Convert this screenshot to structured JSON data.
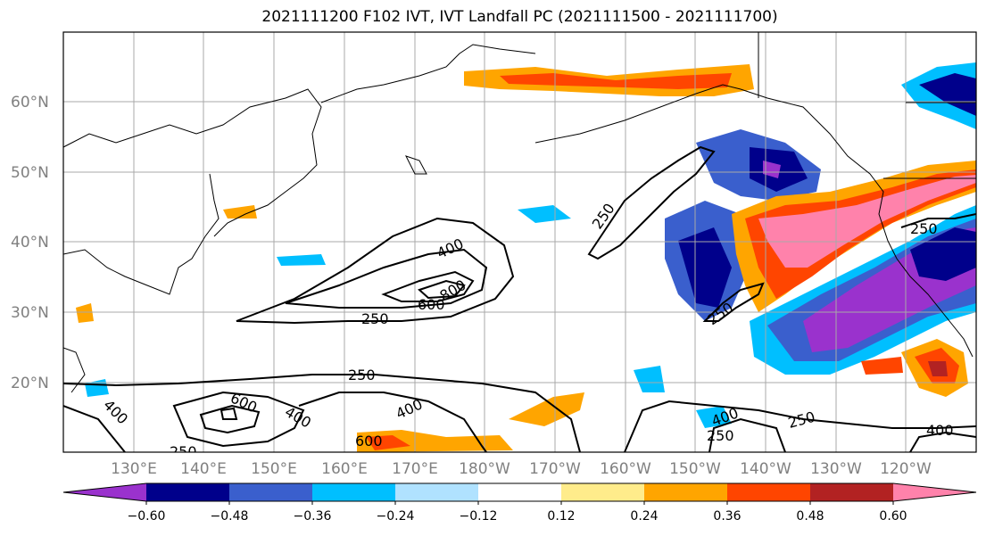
{
  "title": "2021111200 F102 IVT, IVT Landfall PC (2021111500 - 2021111700)",
  "lat_labels": [
    "60°N",
    "50°N",
    "40°N",
    "30°N",
    "20°N"
  ],
  "lon_labels": [
    "130°E",
    "140°E",
    "150°E",
    "160°E",
    "170°E",
    "180°W",
    "170°W",
    "160°W",
    "150°W",
    "140°W",
    "130°W",
    "120°W"
  ],
  "colorbar": {
    "colors": [
      "#9a32cd",
      "#00008b",
      "#3a5fcd",
      "#00bfff",
      "#b0e2ff",
      "#ffffff",
      "#ffec8b",
      "#ffa500",
      "#ff4500",
      "#b22222",
      "#ff82ab"
    ],
    "ticks": [
      "−0.60",
      "−0.48",
      "−0.36",
      "−0.24",
      "−0.12",
      "0.12",
      "0.24",
      "0.36",
      "0.48",
      "0.60"
    ]
  },
  "contour_labels": [
    "400",
    "800",
    "600",
    "250",
    "250",
    "250",
    "250",
    "600",
    "400",
    "400",
    "400",
    "250",
    "600",
    "250",
    "250",
    "400",
    "400",
    "250"
  ]
}
